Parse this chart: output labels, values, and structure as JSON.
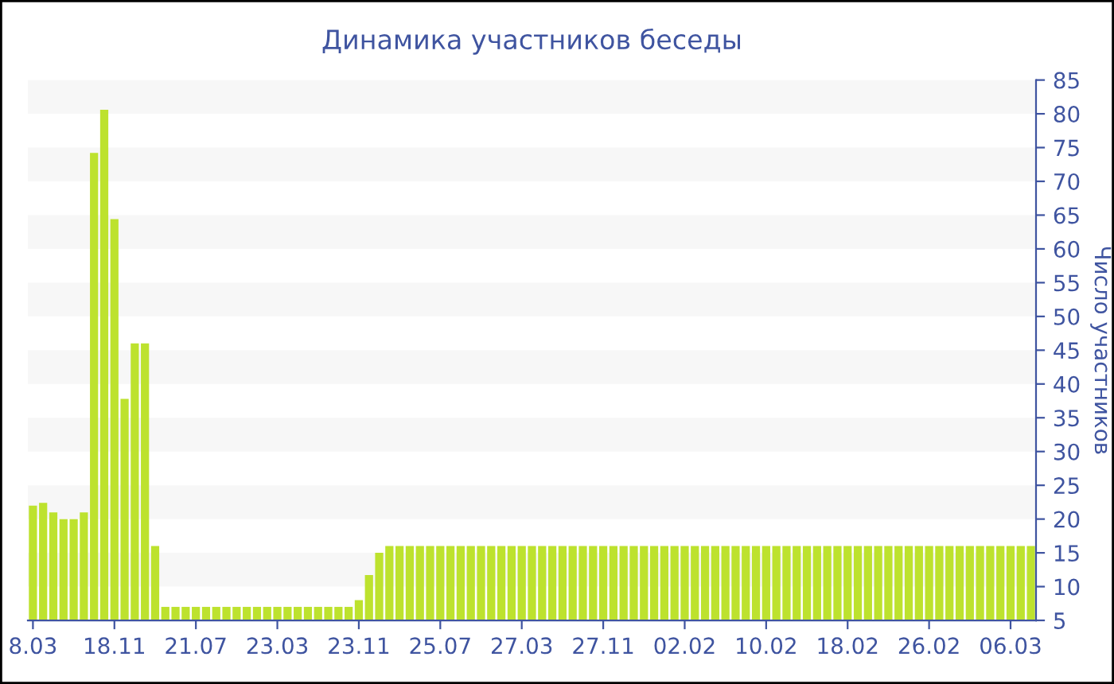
{
  "chart_data": {
    "type": "bar",
    "title": "Динамика участников беседы",
    "ylabel": "Число участников",
    "categories": [
      "8.03",
      null,
      null,
      null,
      null,
      null,
      null,
      null,
      "18.11",
      null,
      null,
      null,
      null,
      null,
      null,
      null,
      "21.07",
      null,
      null,
      null,
      null,
      null,
      null,
      null,
      "23.03",
      null,
      null,
      null,
      null,
      null,
      null,
      null,
      "23.11",
      null,
      null,
      null,
      null,
      null,
      null,
      null,
      "25.07",
      null,
      null,
      null,
      null,
      null,
      null,
      null,
      "27.03",
      null,
      null,
      null,
      null,
      null,
      null,
      null,
      "27.11",
      null,
      null,
      null,
      null,
      null,
      null,
      null,
      "02.02",
      null,
      null,
      null,
      null,
      null,
      null,
      null,
      "10.02",
      null,
      null,
      null,
      null,
      null,
      null,
      null,
      "18.02",
      null,
      null,
      null,
      null,
      null,
      null,
      null,
      "26.02",
      null,
      null,
      null,
      null,
      null,
      null,
      null,
      "06.03",
      null,
      null
    ],
    "values": [
      22,
      22.4,
      21,
      20,
      20,
      21,
      74.2,
      80.6,
      64.4,
      37.8,
      46,
      46,
      16,
      7,
      7,
      7,
      7,
      7,
      7,
      7,
      7,
      7,
      7,
      7,
      7,
      7,
      7,
      7,
      7,
      7,
      7,
      7,
      8,
      11.7,
      15,
      16,
      16,
      16,
      16,
      16,
      16,
      16,
      16,
      16,
      16,
      16,
      16,
      16,
      16,
      16,
      16,
      16,
      16,
      16,
      16,
      16,
      16,
      16,
      16,
      16,
      16,
      16,
      16,
      16,
      16,
      16,
      16,
      16,
      16,
      16,
      16,
      16,
      16,
      16,
      16,
      16,
      16,
      16,
      16,
      16,
      16,
      16,
      16,
      16,
      16,
      16,
      16,
      16,
      16,
      16,
      16,
      16,
      16,
      16,
      16,
      16,
      16,
      16,
      16
    ],
    "color": "#bde22e",
    "ylim": [
      5,
      85
    ],
    "yticks": [
      5,
      10,
      15,
      20,
      25,
      30,
      35,
      40,
      45,
      50,
      55,
      60,
      65,
      70,
      75,
      80,
      85
    ],
    "bands": [
      {
        "axis": "y",
        "from": 80,
        "to": 85,
        "color": "#f7f7f7"
      },
      {
        "axis": "y",
        "from": 70,
        "to": 75,
        "color": "#f7f7f7"
      },
      {
        "axis": "y",
        "from": 60,
        "to": 65,
        "color": "#f7f7f7"
      },
      {
        "axis": "y",
        "from": 50,
        "to": 55,
        "color": "#f7f7f7"
      },
      {
        "axis": "y",
        "from": 40,
        "to": 45,
        "color": "#f7f7f7"
      },
      {
        "axis": "y",
        "from": 30,
        "to": 35,
        "color": "#f7f7f7"
      },
      {
        "axis": "y",
        "from": 20,
        "to": 25,
        "color": "#f7f7f7"
      },
      {
        "axis": "y",
        "from": 10,
        "to": 15,
        "color": "#f7f7f7"
      }
    ],
    "legend": false
  }
}
